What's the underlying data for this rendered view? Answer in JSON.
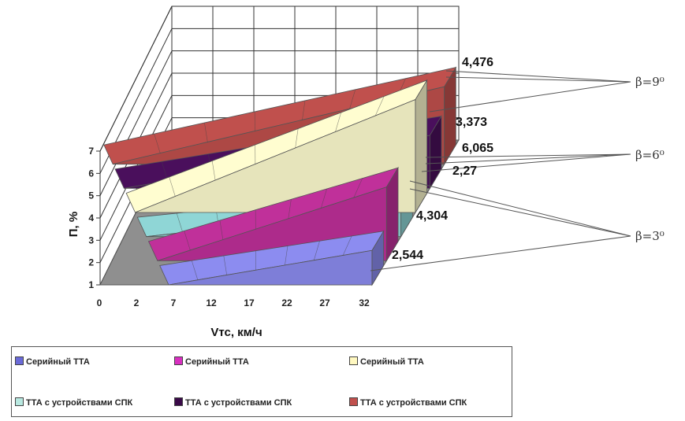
{
  "chart_data": {
    "type": "area",
    "ylabel": "П, %",
    "xlabel": "Vтс, км/ч",
    "y_ticks": [
      "1",
      "2",
      "3",
      "4",
      "5",
      "6",
      "7"
    ],
    "x_ticks": [
      "0",
      "2",
      "7",
      "12",
      "17",
      "22",
      "27",
      "32"
    ],
    "ylim": [
      1,
      7
    ],
    "series": [
      {
        "name": "Серийный ТТА",
        "color": "#8c8cf0",
        "end_value": 2.544
      },
      {
        "name": "Серийный ТТА",
        "color": "#c0309a",
        "end_value": 4.304
      },
      {
        "name": "Серийный ТТА",
        "color": "#fffdd0",
        "end_value": 6.065
      },
      {
        "name": "ТТА с устройствами СПК",
        "color": "#8fd6d6",
        "end_value": 2.27
      },
      {
        "name": "ТТА с устройствами СПК",
        "color": "#4a0f5c",
        "end_value": 3.373
      },
      {
        "name": "ТТА с устройствами СПК",
        "color": "#c0504d",
        "end_value": 4.476
      }
    ],
    "value_labels": [
      "4,476",
      "3,373",
      "6,065",
      "2,27",
      "4,304",
      "2,544"
    ],
    "annotations": [
      {
        "label": "β=9⁰",
        "group": "β=9"
      },
      {
        "label": "β=6⁰",
        "group": "β=6"
      },
      {
        "label": "β=3⁰",
        "group": "β=3"
      }
    ],
    "legend": [
      "Серийный ТТА",
      "Серийный ТТА",
      "Серийный ТТА",
      "ТТА с устройствами СПК",
      "ТТА с устройствами СПК",
      "ТТА с устройствами СПК"
    ],
    "legend_colors": [
      "#6a6ad8",
      "#d82fc0",
      "#fff8c0",
      "#b8e8e0",
      "#3a0a48",
      "#c0504d"
    ],
    "legend_placement": "bottom"
  }
}
